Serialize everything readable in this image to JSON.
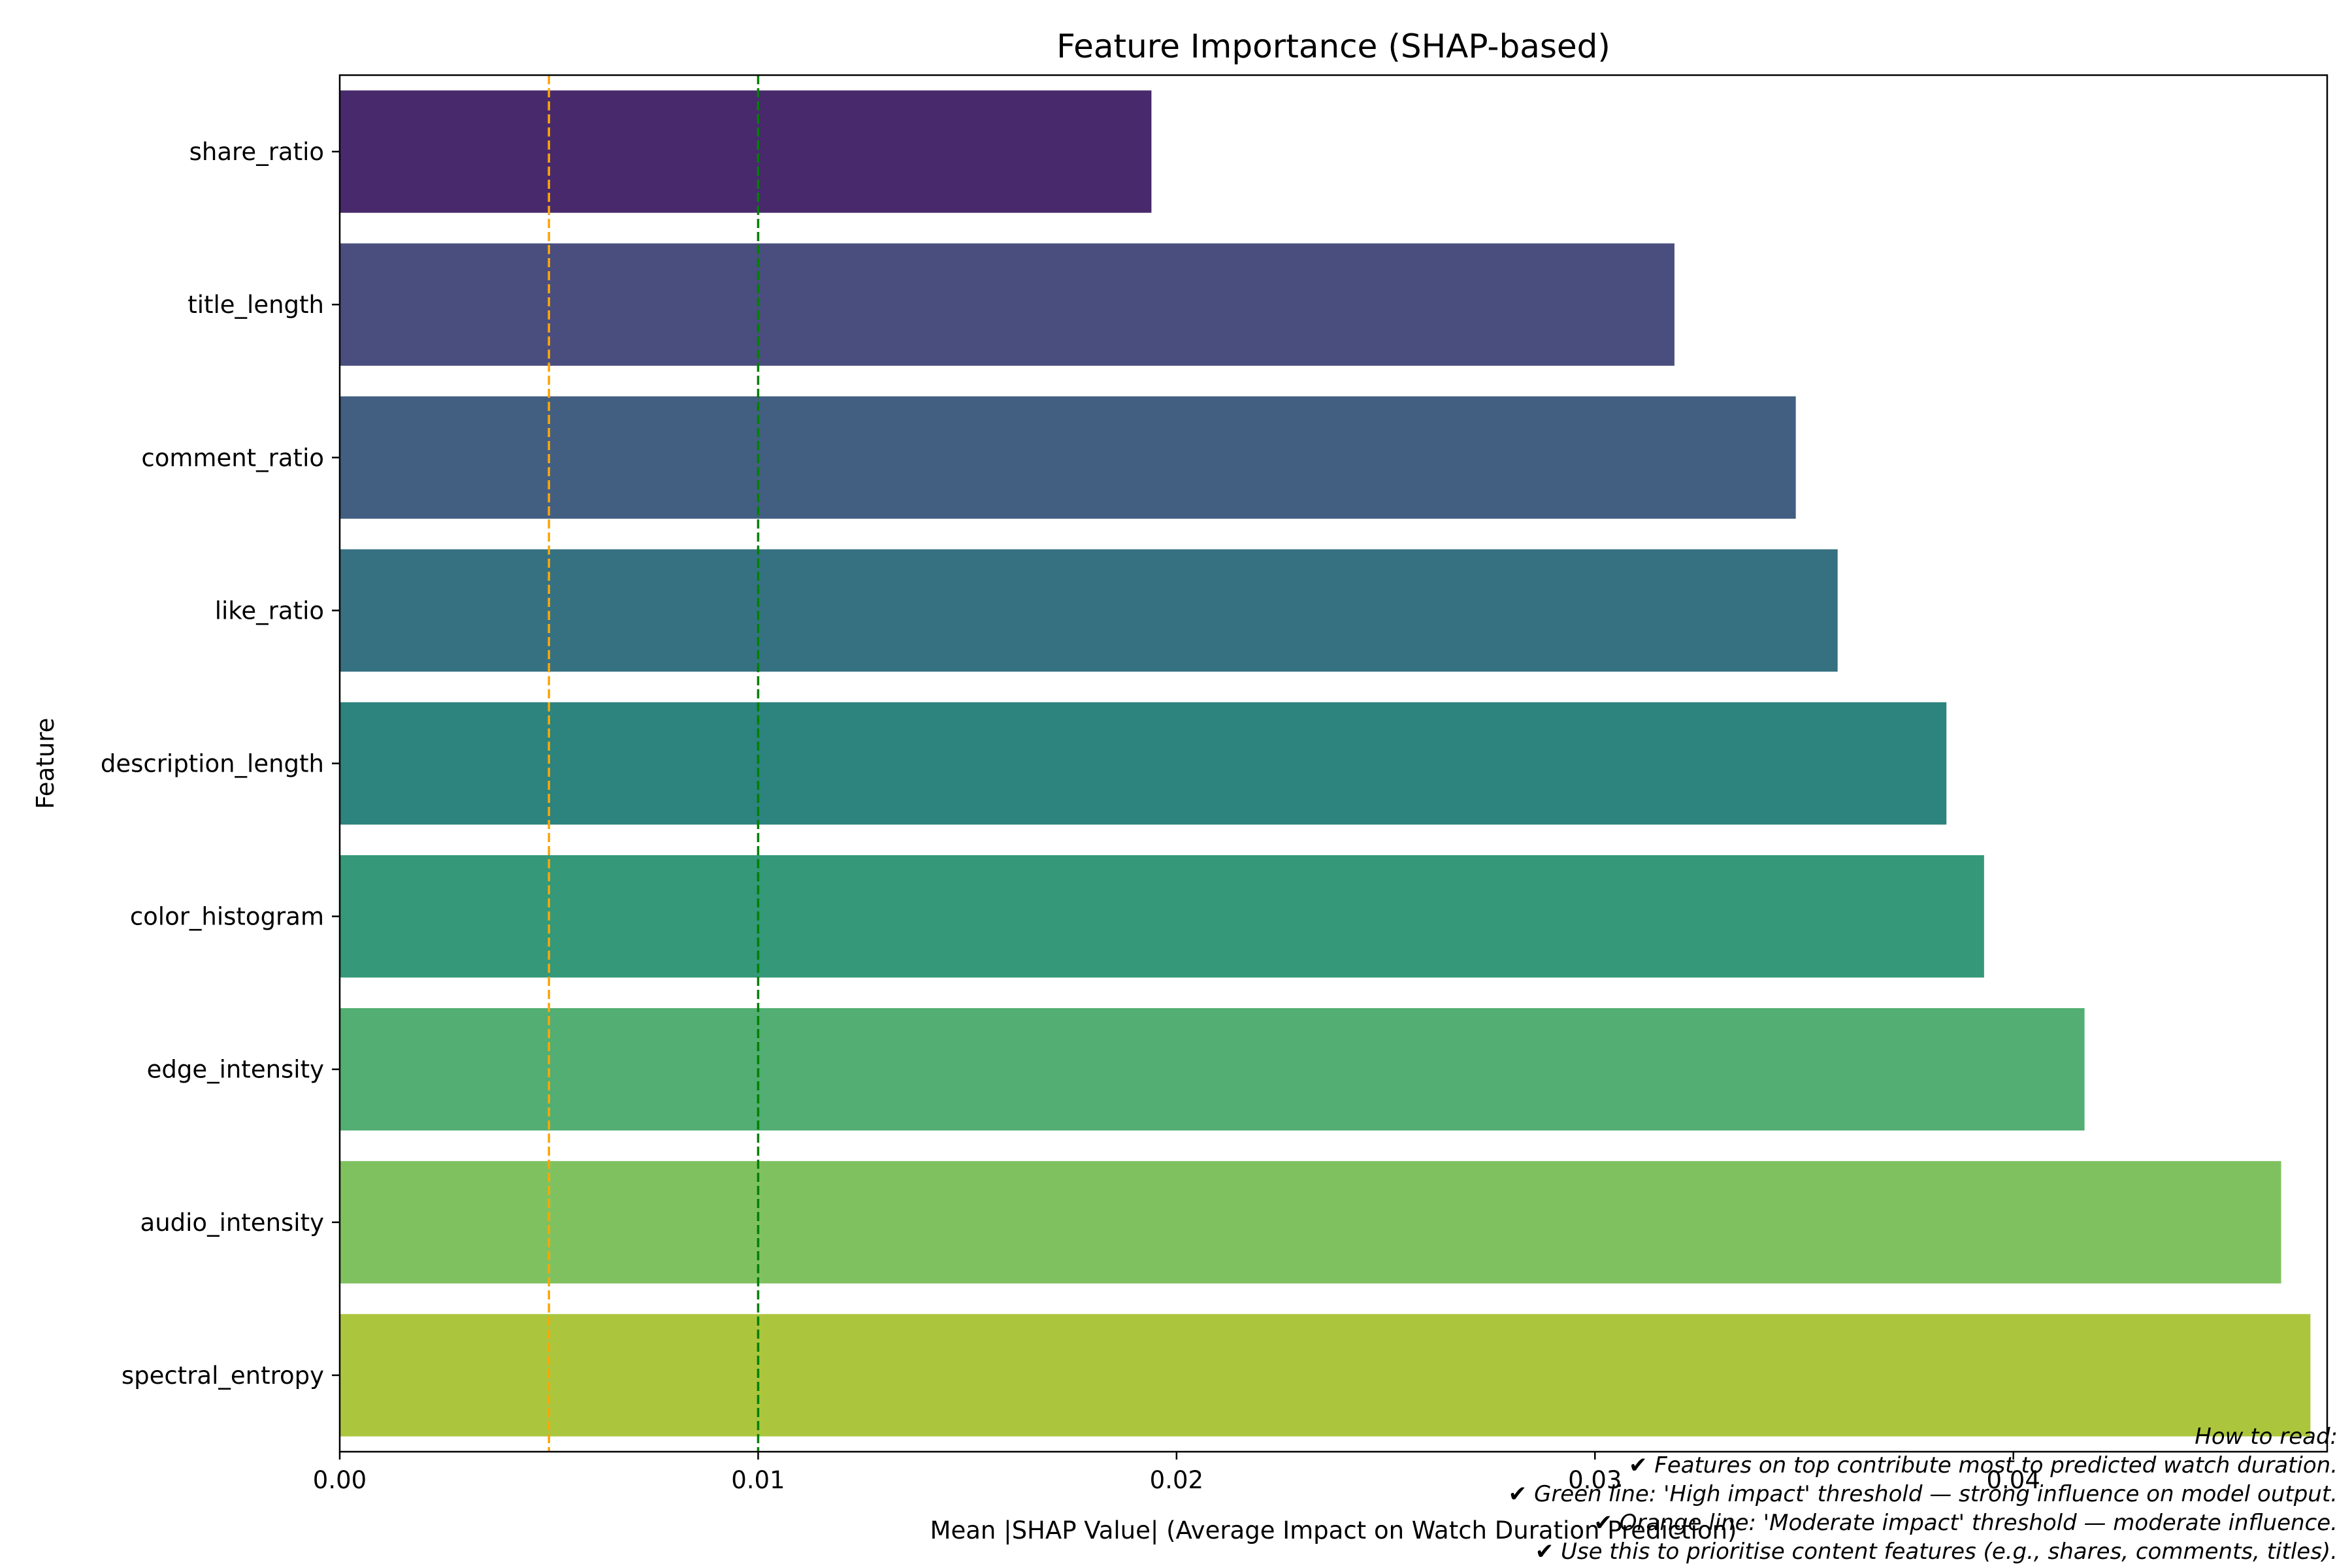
{
  "chart_data": {
    "type": "bar",
    "orientation": "horizontal",
    "title": "Feature Importance (SHAP-based)",
    "xlabel": "Mean |SHAP Value| (Average Impact on Watch Duration Prediction)",
    "ylabel": "Feature",
    "xlim": [
      0,
      0.0475
    ],
    "x_ticks": [
      0,
      0.01,
      0.02,
      0.03,
      0.04
    ],
    "x_tick_labels": [
      "0.00",
      "0.01",
      "0.02",
      "0.03",
      "0.04"
    ],
    "grid": false,
    "categories": [
      "share_ratio",
      "title_length",
      "comment_ratio",
      "like_ratio",
      "description_length",
      "color_histogram",
      "edge_intensity",
      "audio_intensity",
      "spectral_entropy"
    ],
    "values": [
      0.0194,
      0.0319,
      0.0348,
      0.0358,
      0.0384,
      0.0393,
      0.0417,
      0.0464,
      0.0471
    ],
    "colors": [
      "#482a6c",
      "#4a4e7e",
      "#425f82",
      "#367182",
      "#2d837e",
      "#349879",
      "#52ae72",
      "#80c15f",
      "#abc63d"
    ],
    "reference_lines": [
      {
        "x": 0.005,
        "color": "#ffa500",
        "style": "dashed"
      },
      {
        "x": 0.01,
        "color": "#008000",
        "style": "dashed"
      }
    ],
    "annotation": {
      "lines": [
        "How to read:",
        "✔ Features on top contribute most to predicted watch duration.",
        "✔ Green line: 'High impact' threshold — strong influence on model output.",
        "✔ Orange line: 'Moderate impact' threshold — moderate influence.",
        "✔ Use this to prioritise content features (e.g., shares, comments, titles)."
      ]
    }
  }
}
